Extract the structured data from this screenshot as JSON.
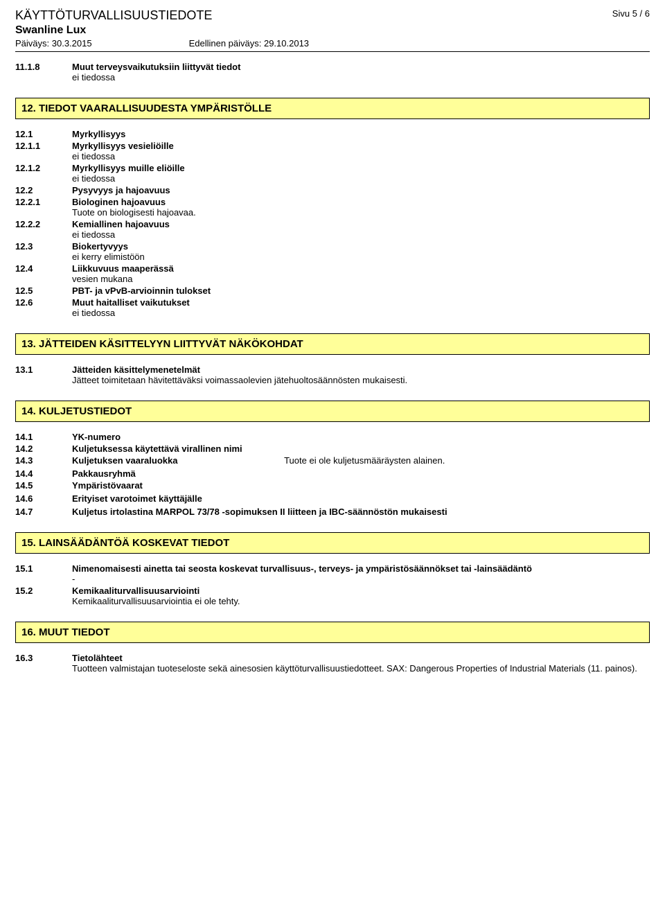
{
  "header": {
    "docTitle": "KÄYTTÖTURVALLISUUSTIEDOTE",
    "pageLabel": "Sivu  5 / 6",
    "product": "Swanline Lux",
    "dateLabel": "Päiväys: 30.3.2015",
    "prevDateLabel": "Edellinen päiväys: 29.10.2013"
  },
  "intro": {
    "num": "11.1.8",
    "label": "Muut terveysvaikutuksiin liittyvät tiedot",
    "text": "ei tiedossa"
  },
  "s12": {
    "title": "12. TIEDOT VAARALLISUUDESTA YMPÄRISTÖLLE",
    "e1": {
      "num": "12.1",
      "label": "Myrkyllisyys"
    },
    "e2": {
      "num": "12.1.1",
      "label": "Myrkyllisyys vesieliöille",
      "text": "ei tiedossa"
    },
    "e3": {
      "num": "12.1.2",
      "label": "Myrkyllisyys muille eliöille",
      "text": "ei tiedossa"
    },
    "e4": {
      "num": "12.2",
      "label": "Pysyvyys ja hajoavuus"
    },
    "e5": {
      "num": "12.2.1",
      "label": "Biologinen hajoavuus",
      "text": "Tuote on biologisesti hajoavaa."
    },
    "e6": {
      "num": "12.2.2",
      "label": "Kemiallinen hajoavuus",
      "text": "ei tiedossa"
    },
    "e7": {
      "num": "12.3",
      "label": "Biokertyvyys",
      "text": "ei kerry elimistöön"
    },
    "e8": {
      "num": "12.4",
      "label": "Liikkuvuus maaperässä",
      "text": "vesien mukana"
    },
    "e9": {
      "num": "12.5",
      "label": "PBT- ja vPvB-arvioinnin tulokset"
    },
    "e10": {
      "num": "12.6",
      "label": "Muut haitalliset vaikutukset",
      "text": "ei tiedossa"
    }
  },
  "s13": {
    "title": "13. JÄTTEIDEN KÄSITTELYYN LIITTYVÄT NÄKÖKOHDAT",
    "e1": {
      "num": "13.1",
      "label": "Jätteiden käsittelymenetelmät",
      "text": "Jätteet toimitetaan hävitettäväksi voimassaolevien jätehuoltosäännösten mukaisesti."
    }
  },
  "s14": {
    "title": "14. KULJETUSTIEDOT",
    "e1": {
      "num": "14.1",
      "label": "YK-numero"
    },
    "e2": {
      "num": "14.2",
      "label": "Kuljetuksessa käytettävä virallinen nimi"
    },
    "e3": {
      "num": "14.3",
      "label": "Kuljetuksen vaaraluokka",
      "side": "Tuote ei ole kuljetusmääräysten alainen."
    },
    "e4": {
      "num": "14.4",
      "label": "Pakkausryhmä"
    },
    "e5": {
      "num": "14.5",
      "label": "Ympäristövaarat"
    },
    "e6": {
      "num": "14.6",
      "label": "Erityiset varotoimet käyttäjälle"
    },
    "e7": {
      "num": "14.7",
      "label": "Kuljetus irtolastina MARPOL 73/78 -sopimuksen II liitteen ja IBC-säännöstön mukaisesti"
    }
  },
  "s15": {
    "title": "15. LAINSÄÄDÄNTÖÄ KOSKEVAT TIEDOT",
    "e1": {
      "num": "15.1",
      "label": "Nimenomaisesti ainetta tai seosta koskevat turvallisuus-, terveys- ja ympäristösäännökset tai -lainsäädäntö",
      "text": "-"
    },
    "e2": {
      "num": "15.2",
      "label": "Kemikaaliturvallisuusarviointi",
      "text": "Kemikaaliturvallisuusarviointia ei ole tehty."
    }
  },
  "s16": {
    "title": "16. MUUT TIEDOT",
    "e1": {
      "num": "16.3",
      "label": "Tietolähteet",
      "text": "Tuotteen valmistajan tuoteseloste sekä ainesosien käyttöturvallisuustiedotteet.  SAX: Dangerous Properties of Industrial Materials (11. painos)."
    }
  },
  "style": {
    "bannerBg": "#ffff99",
    "bannerBorder": "#000000",
    "pageBg": "#ffffff",
    "textColor": "#000000"
  }
}
